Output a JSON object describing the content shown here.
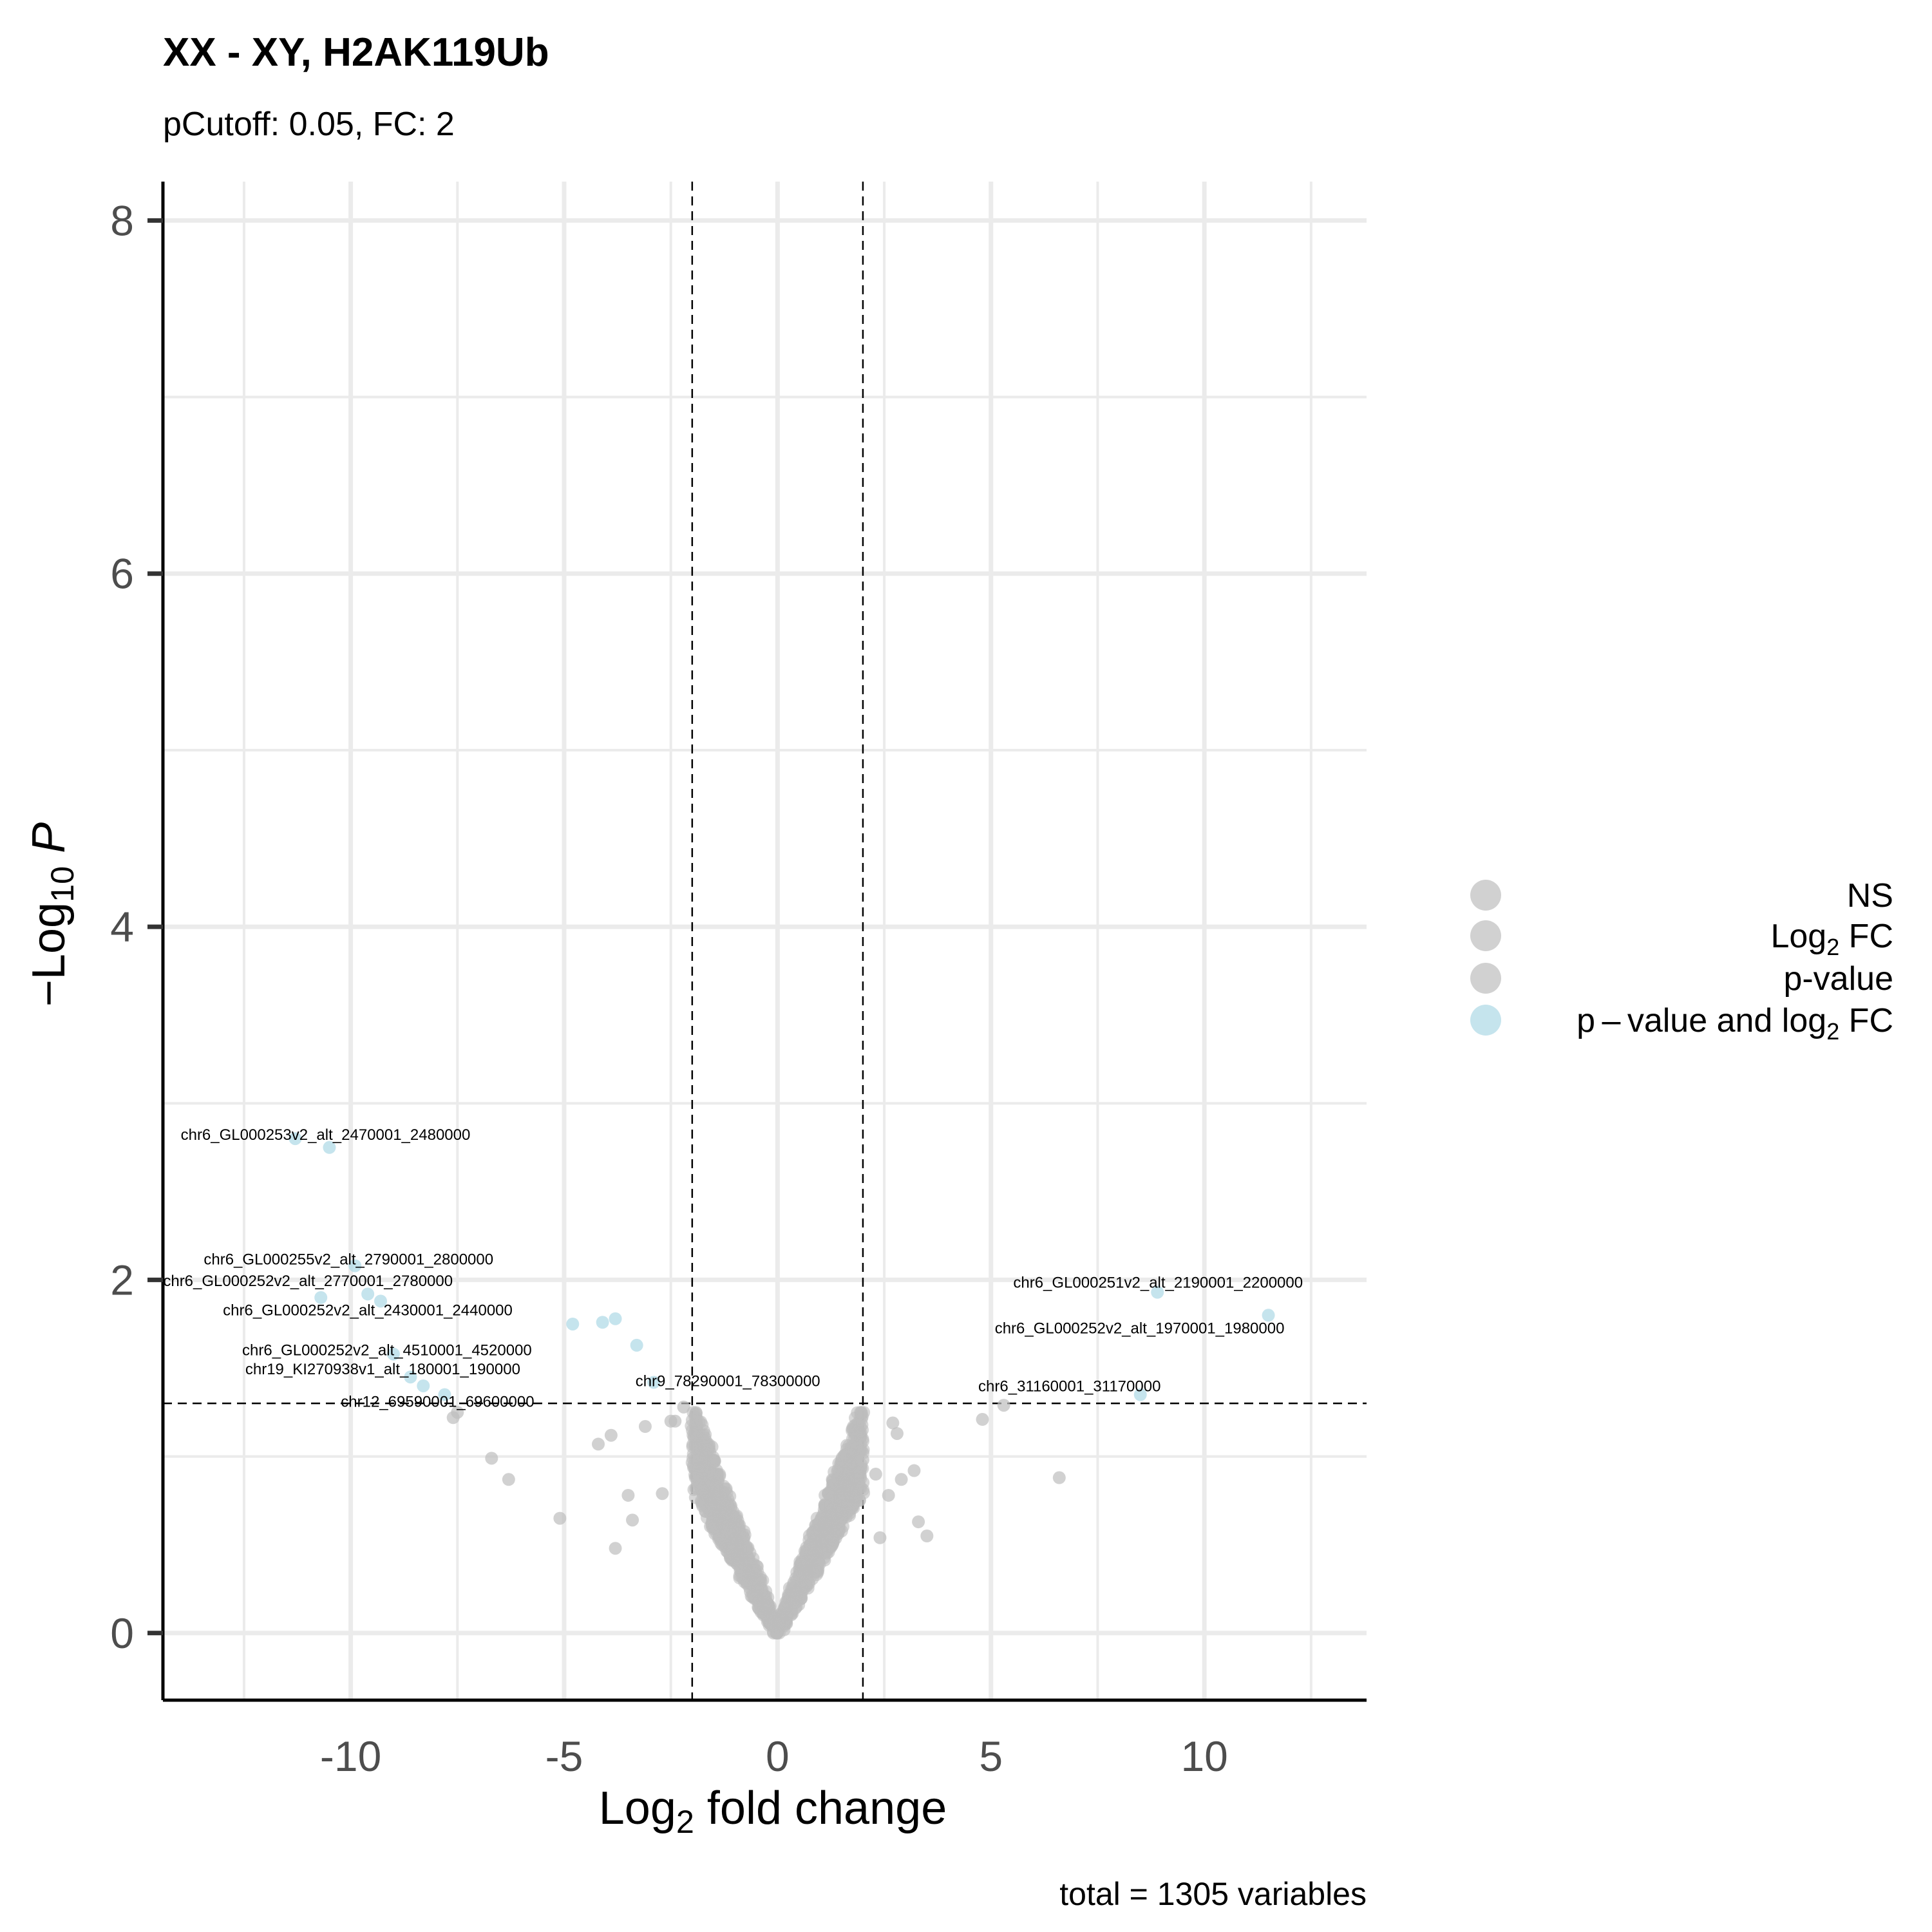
{
  "title": "XX - XY, H2AK119Ub",
  "subtitle": "pCutoff: 0.05, FC: 2",
  "caption": "total = 1305 variables",
  "colors": {
    "ns": "#bdbdbd",
    "sig": "#add8e6",
    "grid": "#ebebeb",
    "axis": "#000000",
    "tick_text": "#4d4d4d"
  },
  "chart_data": {
    "type": "scatter",
    "title": "XX - XY, H2AK119Ub",
    "subtitle": "pCutoff: 0.05, FC: 2",
    "xlabel": "Log2 fold change",
    "ylabel": "-Log10 P",
    "xlim": [
      -14.4,
      13.8
    ],
    "ylim": [
      -0.38,
      8.22
    ],
    "x_ticks": [
      -10,
      -5,
      0,
      5,
      10
    ],
    "x_tick_labels": [
      "-10",
      "-5",
      "0",
      "5",
      "10"
    ],
    "y_ticks": [
      0,
      2,
      4,
      6,
      8
    ],
    "y_tick_labels": [
      "0",
      "2",
      "4",
      "6",
      "8"
    ],
    "cutoffs": {
      "log2fc": [
        -2,
        2
      ],
      "neglog10p": 1.301
    },
    "grid": true,
    "legend_position": "right",
    "legend": [
      {
        "label": "NS",
        "color": "#bdbdbd"
      },
      {
        "label_main": "Log",
        "label_sub": "2",
        "label_rest": " FC",
        "color": "#bdbdbd"
      },
      {
        "label": "p-value",
        "color": "#bdbdbd"
      },
      {
        "label_main": "p – value and log",
        "label_sub": "2",
        "label_rest": " FC",
        "color": "#add8e6"
      }
    ],
    "total_variables": 1305,
    "significant_points": [
      {
        "x": -10.5,
        "y": 2.75,
        "label": "chr6_GL000253v2_alt_2470001_2480000"
      },
      {
        "x": -9.9,
        "y": 2.08,
        "label": "chr6_GL000255v2_alt_2790001_2800000"
      },
      {
        "x": -10.7,
        "y": 1.9,
        "label": "chr6_GL000252v2_alt_2770001_2780000"
      },
      {
        "x": -9.3,
        "y": 1.88,
        "label": "chr6_GL000252v2_alt_2430001_2440000"
      },
      {
        "x": -9.0,
        "y": 1.58,
        "label": "chr6_GL000252v2_alt_4510001_4520000"
      },
      {
        "x": -8.6,
        "y": 1.45,
        "label": "chr19_KI270938v1_alt_180001_190000"
      },
      {
        "x": -7.8,
        "y": 1.35,
        "label": "chr12_69590001_69600000"
      },
      {
        "x": -2.9,
        "y": 1.42,
        "label": "chr9_78290001_78300000"
      },
      {
        "x": 8.9,
        "y": 1.93,
        "label": "chr6_GL000251v2_alt_2190001_2200000"
      },
      {
        "x": 11.5,
        "y": 1.8,
        "label": "chr6_GL000252v2_alt_1970001_1980000"
      },
      {
        "x": 8.5,
        "y": 1.35,
        "label": "chr6_31160001_31170000"
      },
      {
        "x": -4.8,
        "y": 1.75
      },
      {
        "x": -4.1,
        "y": 1.76
      },
      {
        "x": -3.8,
        "y": 1.78
      },
      {
        "x": -3.3,
        "y": 1.63
      },
      {
        "x": -8.3,
        "y": 1.4
      },
      {
        "x": -9.6,
        "y": 1.92
      },
      {
        "x": -11.3,
        "y": 2.8
      }
    ],
    "ns_points_explicit": [
      [
        -7.6,
        1.22
      ],
      [
        -7.5,
        1.25
      ],
      [
        -6.7,
        0.99
      ],
      [
        -6.3,
        0.87
      ],
      [
        -5.1,
        0.65
      ],
      [
        -4.2,
        1.07
      ],
      [
        -3.9,
        1.12
      ],
      [
        -3.1,
        1.17
      ],
      [
        -3.8,
        0.48
      ],
      [
        -3.4,
        0.64
      ],
      [
        -3.5,
        0.78
      ],
      [
        -2.7,
        0.79
      ],
      [
        -2.5,
        1.2
      ],
      [
        -2.4,
        1.2
      ],
      [
        -2.2,
        1.28
      ],
      [
        2.0,
        0.98
      ],
      [
        2.7,
        1.19
      ],
      [
        2.8,
        1.13
      ],
      [
        3.2,
        0.92
      ],
      [
        3.3,
        0.63
      ],
      [
        3.5,
        0.55
      ],
      [
        2.9,
        0.87
      ],
      [
        4.8,
        1.21
      ],
      [
        5.3,
        1.29
      ],
      [
        6.6,
        0.88
      ],
      [
        2.3,
        0.9
      ],
      [
        2.4,
        0.54
      ],
      [
        2.6,
        0.78
      ]
    ]
  }
}
